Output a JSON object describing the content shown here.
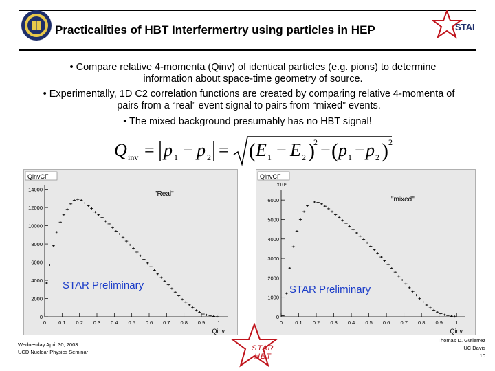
{
  "header": {
    "title": "Practicalities of HBT Interfermertry using particles in HEP",
    "seal_icon": "uc-davis-seal-icon",
    "logo_text": "STAR"
  },
  "bullets": [
    {
      "text": "•  Compare relative 4-momenta (Qinv) of identical particles (e.g. pions) to determine information about space-time geometry of source."
    },
    {
      "text": "•  Experimentally, 1D C2 correlation functions are created by comparing relative 4-momenta of pairs from a “real” event signal to pairs from “mixed” events."
    },
    {
      "text": "•  The mixed background presumably has no HBT signal!"
    }
  ],
  "formula": {
    "lhs": "Q",
    "lhs_sub": "inv",
    "p1": "p",
    "p2": "p",
    "e1": "E",
    "e2": "E",
    "sub1": "1",
    "sub2": "2",
    "exp": "2"
  },
  "chart_data": [
    {
      "type": "scatter",
      "title": "QinvCF",
      "annotation": "\"Real\"",
      "preliminary": "STAR Preliminary",
      "xlabel": "Qinv",
      "xlim": [
        0,
        1.05
      ],
      "ylim": [
        0,
        14500
      ],
      "xticks": [
        "0",
        "0.1",
        "0.2",
        "0.3",
        "0.4",
        "0.5",
        "0.6",
        "0.7",
        "0.8",
        "0.9",
        "1"
      ],
      "yticks": [
        "0",
        "2000",
        "4000",
        "6000",
        "8000",
        "10000",
        "12000",
        "14000"
      ],
      "x": [
        0.01,
        0.03,
        0.05,
        0.07,
        0.09,
        0.11,
        0.13,
        0.15,
        0.17,
        0.19,
        0.21,
        0.23,
        0.25,
        0.27,
        0.29,
        0.31,
        0.33,
        0.35,
        0.37,
        0.39,
        0.41,
        0.43,
        0.45,
        0.47,
        0.49,
        0.51,
        0.53,
        0.55,
        0.57,
        0.59,
        0.61,
        0.63,
        0.65,
        0.67,
        0.69,
        0.71,
        0.73,
        0.75,
        0.77,
        0.79,
        0.81,
        0.83,
        0.85,
        0.87,
        0.89,
        0.91,
        0.93,
        0.95,
        0.97,
        0.99
      ],
      "y": [
        3700,
        5700,
        7800,
        9300,
        10400,
        11200,
        11800,
        12400,
        12800,
        12900,
        12800,
        12500,
        12200,
        11900,
        11500,
        11200,
        10900,
        10500,
        10200,
        9800,
        9400,
        9100,
        8700,
        8300,
        7900,
        7500,
        7100,
        6700,
        6300,
        5900,
        5500,
        5100,
        4700,
        4300,
        3900,
        3500,
        3100,
        2700,
        2300,
        1900,
        1600,
        1300,
        1000,
        700,
        500,
        300,
        200,
        100,
        50,
        20
      ]
    },
    {
      "type": "scatter",
      "title": "QinvCF",
      "annotation": "\"mixed\"",
      "preliminary": "STAR Preliminary",
      "xlabel": "Qinv",
      "multiplier": "x10²",
      "xlim": [
        0,
        1.05
      ],
      "ylim": [
        0,
        6500
      ],
      "xticks": [
        "0",
        "0.1",
        "0.2",
        "0.3",
        "0.4",
        "0.5",
        "0.6",
        "0.7",
        "0.8",
        "0.9",
        "1"
      ],
      "yticks": [
        "0",
        "1000",
        "2000",
        "3000",
        "4000",
        "5000",
        "6000"
      ],
      "x": [
        0.01,
        0.03,
        0.05,
        0.07,
        0.09,
        0.11,
        0.13,
        0.15,
        0.17,
        0.19,
        0.21,
        0.23,
        0.25,
        0.27,
        0.29,
        0.31,
        0.33,
        0.35,
        0.37,
        0.39,
        0.41,
        0.43,
        0.45,
        0.47,
        0.49,
        0.51,
        0.53,
        0.55,
        0.57,
        0.59,
        0.61,
        0.63,
        0.65,
        0.67,
        0.69,
        0.71,
        0.73,
        0.75,
        0.77,
        0.79,
        0.81,
        0.83,
        0.85,
        0.87,
        0.89,
        0.91,
        0.93,
        0.95,
        0.97,
        0.99
      ],
      "y": [
        50,
        1200,
        2500,
        3600,
        4400,
        5000,
        5400,
        5700,
        5850,
        5900,
        5880,
        5800,
        5680,
        5550,
        5400,
        5250,
        5100,
        4950,
        4800,
        4640,
        4480,
        4310,
        4140,
        3970,
        3800,
        3620,
        3440,
        3260,
        3070,
        2880,
        2690,
        2490,
        2290,
        2090,
        1890,
        1690,
        1490,
        1300,
        1110,
        930,
        760,
        600,
        460,
        340,
        240,
        160,
        100,
        60,
        30,
        10
      ]
    }
  ],
  "footer": {
    "left_line1": "Wednesday April 30, 2003",
    "left_line2": "UCD Nuclear Physics Seminar",
    "center_line1": "STAR",
    "center_line2": "HBT",
    "right_line1": "Thomas D. Gutierrez",
    "right_line2": "UC Davis",
    "right_line3": "10"
  },
  "colors": {
    "accent": "#c0141c",
    "prelim": "#1a3cc8",
    "plot_bg": "#e8e8e8"
  }
}
